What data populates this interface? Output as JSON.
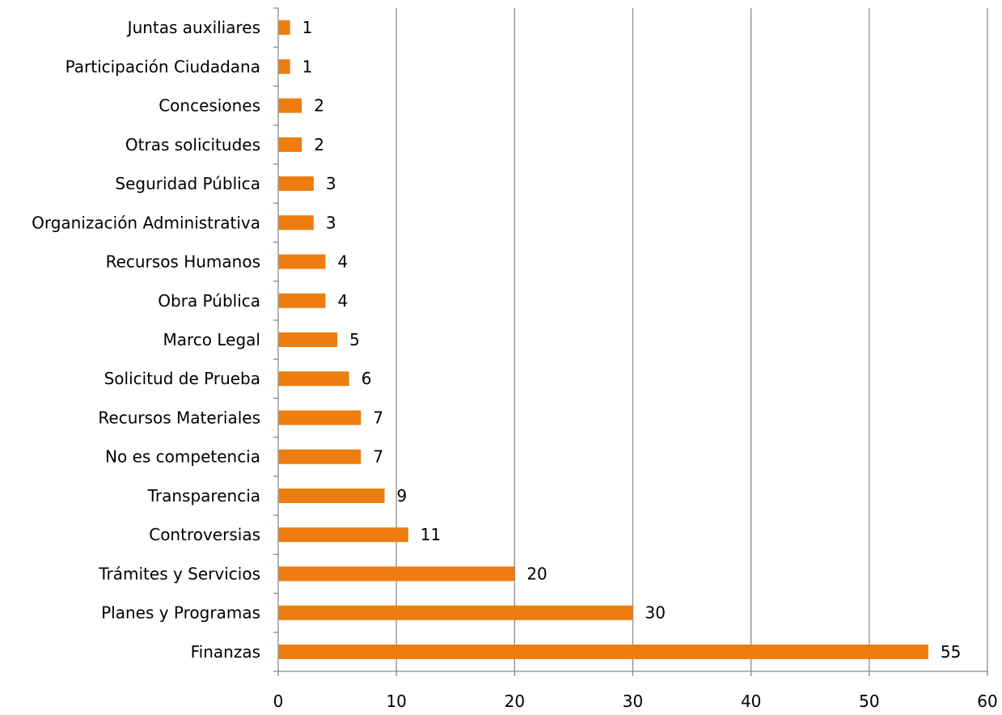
{
  "chart_data": {
    "type": "bar",
    "orientation": "horizontal",
    "title": "",
    "xlabel": "",
    "ylabel": "",
    "categories": [
      "Juntas auxiliares",
      "Participación Ciudadana",
      "Concesiones",
      "Otras solicitudes",
      "Seguridad Pública",
      "Organización Administrativa",
      "Recursos Humanos",
      "Obra Pública",
      "Marco Legal",
      "Solicitud de Prueba",
      "Recursos Materiales",
      "No es competencia",
      "Transparencia",
      "Controversias",
      "Trámites y Servicios",
      "Planes y Programas",
      "Finanzas"
    ],
    "values": [
      1,
      1,
      2,
      2,
      3,
      3,
      4,
      4,
      5,
      6,
      7,
      7,
      9,
      11,
      20,
      30,
      55
    ],
    "data_labels": [
      "1",
      "1",
      "2",
      "2",
      "3",
      "3",
      "4",
      "4",
      "5",
      "6",
      "7",
      "7",
      "9",
      "11",
      "20",
      "30",
      "55"
    ],
    "xlim": [
      0,
      60
    ],
    "x_ticks": [
      "0",
      "10",
      "20",
      "30",
      "40",
      "50",
      "60"
    ],
    "grid": "vertical",
    "legend": "none",
    "bar_color": "#ED7D0E",
    "grid_color": "#8C8C8C",
    "axis_color": "#8C8C8C"
  }
}
